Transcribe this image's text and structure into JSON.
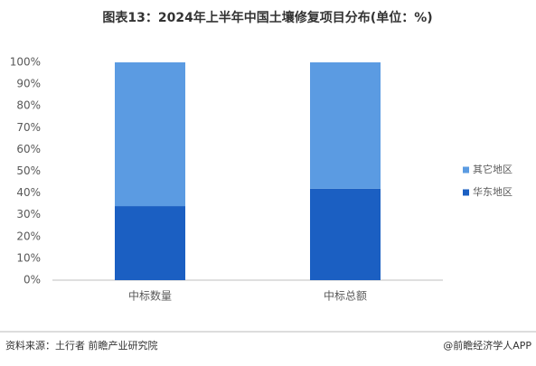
{
  "chart_data": {
    "type": "stacked-bar",
    "title": "图表13：2024年上半年中国土壤修复项目分布(单位：%)",
    "categories": [
      "中标数量",
      "中标总额"
    ],
    "series": [
      {
        "name": "华东地区",
        "color": "#1b5fc2",
        "values": [
          34,
          42
        ]
      },
      {
        "name": "其它地区",
        "color": "#5b9be2",
        "values": [
          66,
          58
        ]
      }
    ],
    "ylim": [
      0,
      100
    ],
    "yticks": [
      {
        "value": 0,
        "label": "0%"
      },
      {
        "value": 10,
        "label": "10%"
      },
      {
        "value": 20,
        "label": "20%"
      },
      {
        "value": 30,
        "label": "30%"
      },
      {
        "value": 40,
        "label": "40%"
      },
      {
        "value": 50,
        "label": "50%"
      },
      {
        "value": 60,
        "label": "60%"
      },
      {
        "value": 70,
        "label": "70%"
      },
      {
        "value": 80,
        "label": "80%"
      },
      {
        "value": 90,
        "label": "90%"
      },
      {
        "value": 100,
        "label": "100%"
      }
    ],
    "grid": false,
    "legend": "right",
    "source": "资料来源：土行者 前瞻产业研究院",
    "credit": "@前瞻经济学人APP"
  }
}
